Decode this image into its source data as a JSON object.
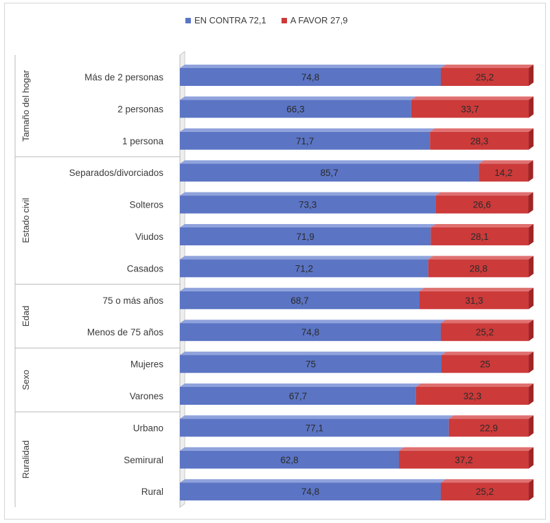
{
  "chart_data": {
    "type": "bar",
    "stacked": true,
    "orientation": "horizontal",
    "legend_position": "top",
    "xlim": [
      0,
      100
    ],
    "colors": {
      "EN CONTRA": "#5b74c4",
      "A FAVOR": "#cc3a3a"
    },
    "legend": [
      {
        "label": "EN CONTRA 72,1",
        "color": "#5b74c4"
      },
      {
        "label": "A FAVOR 27,9",
        "color": "#cc3a3a"
      }
    ],
    "groups": [
      {
        "name": "Tamaño del hogar",
        "categories": [
          "Más de 2 personas",
          "2 personas",
          "1 persona"
        ]
      },
      {
        "name": "Estado civil",
        "categories": [
          "Separados/divorciados",
          "Solteros",
          "Viudos",
          "Casados"
        ]
      },
      {
        "name": "Edad",
        "categories": [
          "75 o más años",
          "Menos de 75 años"
        ]
      },
      {
        "name": "Sexo",
        "categories": [
          "Mujeres",
          "Varones"
        ]
      },
      {
        "name": "Ruralidad",
        "categories": [
          "Urbano",
          "Semirural",
          "Rural"
        ]
      }
    ],
    "categories": [
      "Más de 2 personas",
      "2 personas",
      "1 persona",
      "Separados/divorciados",
      "Solteros",
      "Viudos",
      "Casados",
      "75 o más años",
      "Menos de 75 años",
      "Mujeres",
      "Varones",
      "Urbano",
      "Semirural",
      "Rural"
    ],
    "series": [
      {
        "values": [
          74.8,
          66.3,
          71.7,
          85.7,
          73.3,
          71.9,
          71.2,
          68.7,
          74.8,
          75,
          67.7,
          77.1,
          62.8,
          74.8
        ]
      },
      {
        "values": [
          25.2,
          33.7,
          28.3,
          14.2,
          26.6,
          28.1,
          28.8,
          31.3,
          25.2,
          25,
          32.3,
          22.9,
          37.2,
          25.2
        ]
      }
    ],
    "value_labels": [
      [
        "74,8",
        "25,2"
      ],
      [
        "66,3",
        "33,7"
      ],
      [
        "71,7",
        "28,3"
      ],
      [
        "85,7",
        "14,2"
      ],
      [
        "73,3",
        "26,6"
      ],
      [
        "71,9",
        "28,1"
      ],
      [
        "71,2",
        "28,8"
      ],
      [
        "68,7",
        "31,3"
      ],
      [
        "74,8",
        "25,2"
      ],
      [
        "75",
        "25"
      ],
      [
        "67,7",
        "32,3"
      ],
      [
        "77,1",
        "22,9"
      ],
      [
        "62,8",
        "37,2"
      ],
      [
        "74,8",
        "25,2"
      ]
    ]
  }
}
